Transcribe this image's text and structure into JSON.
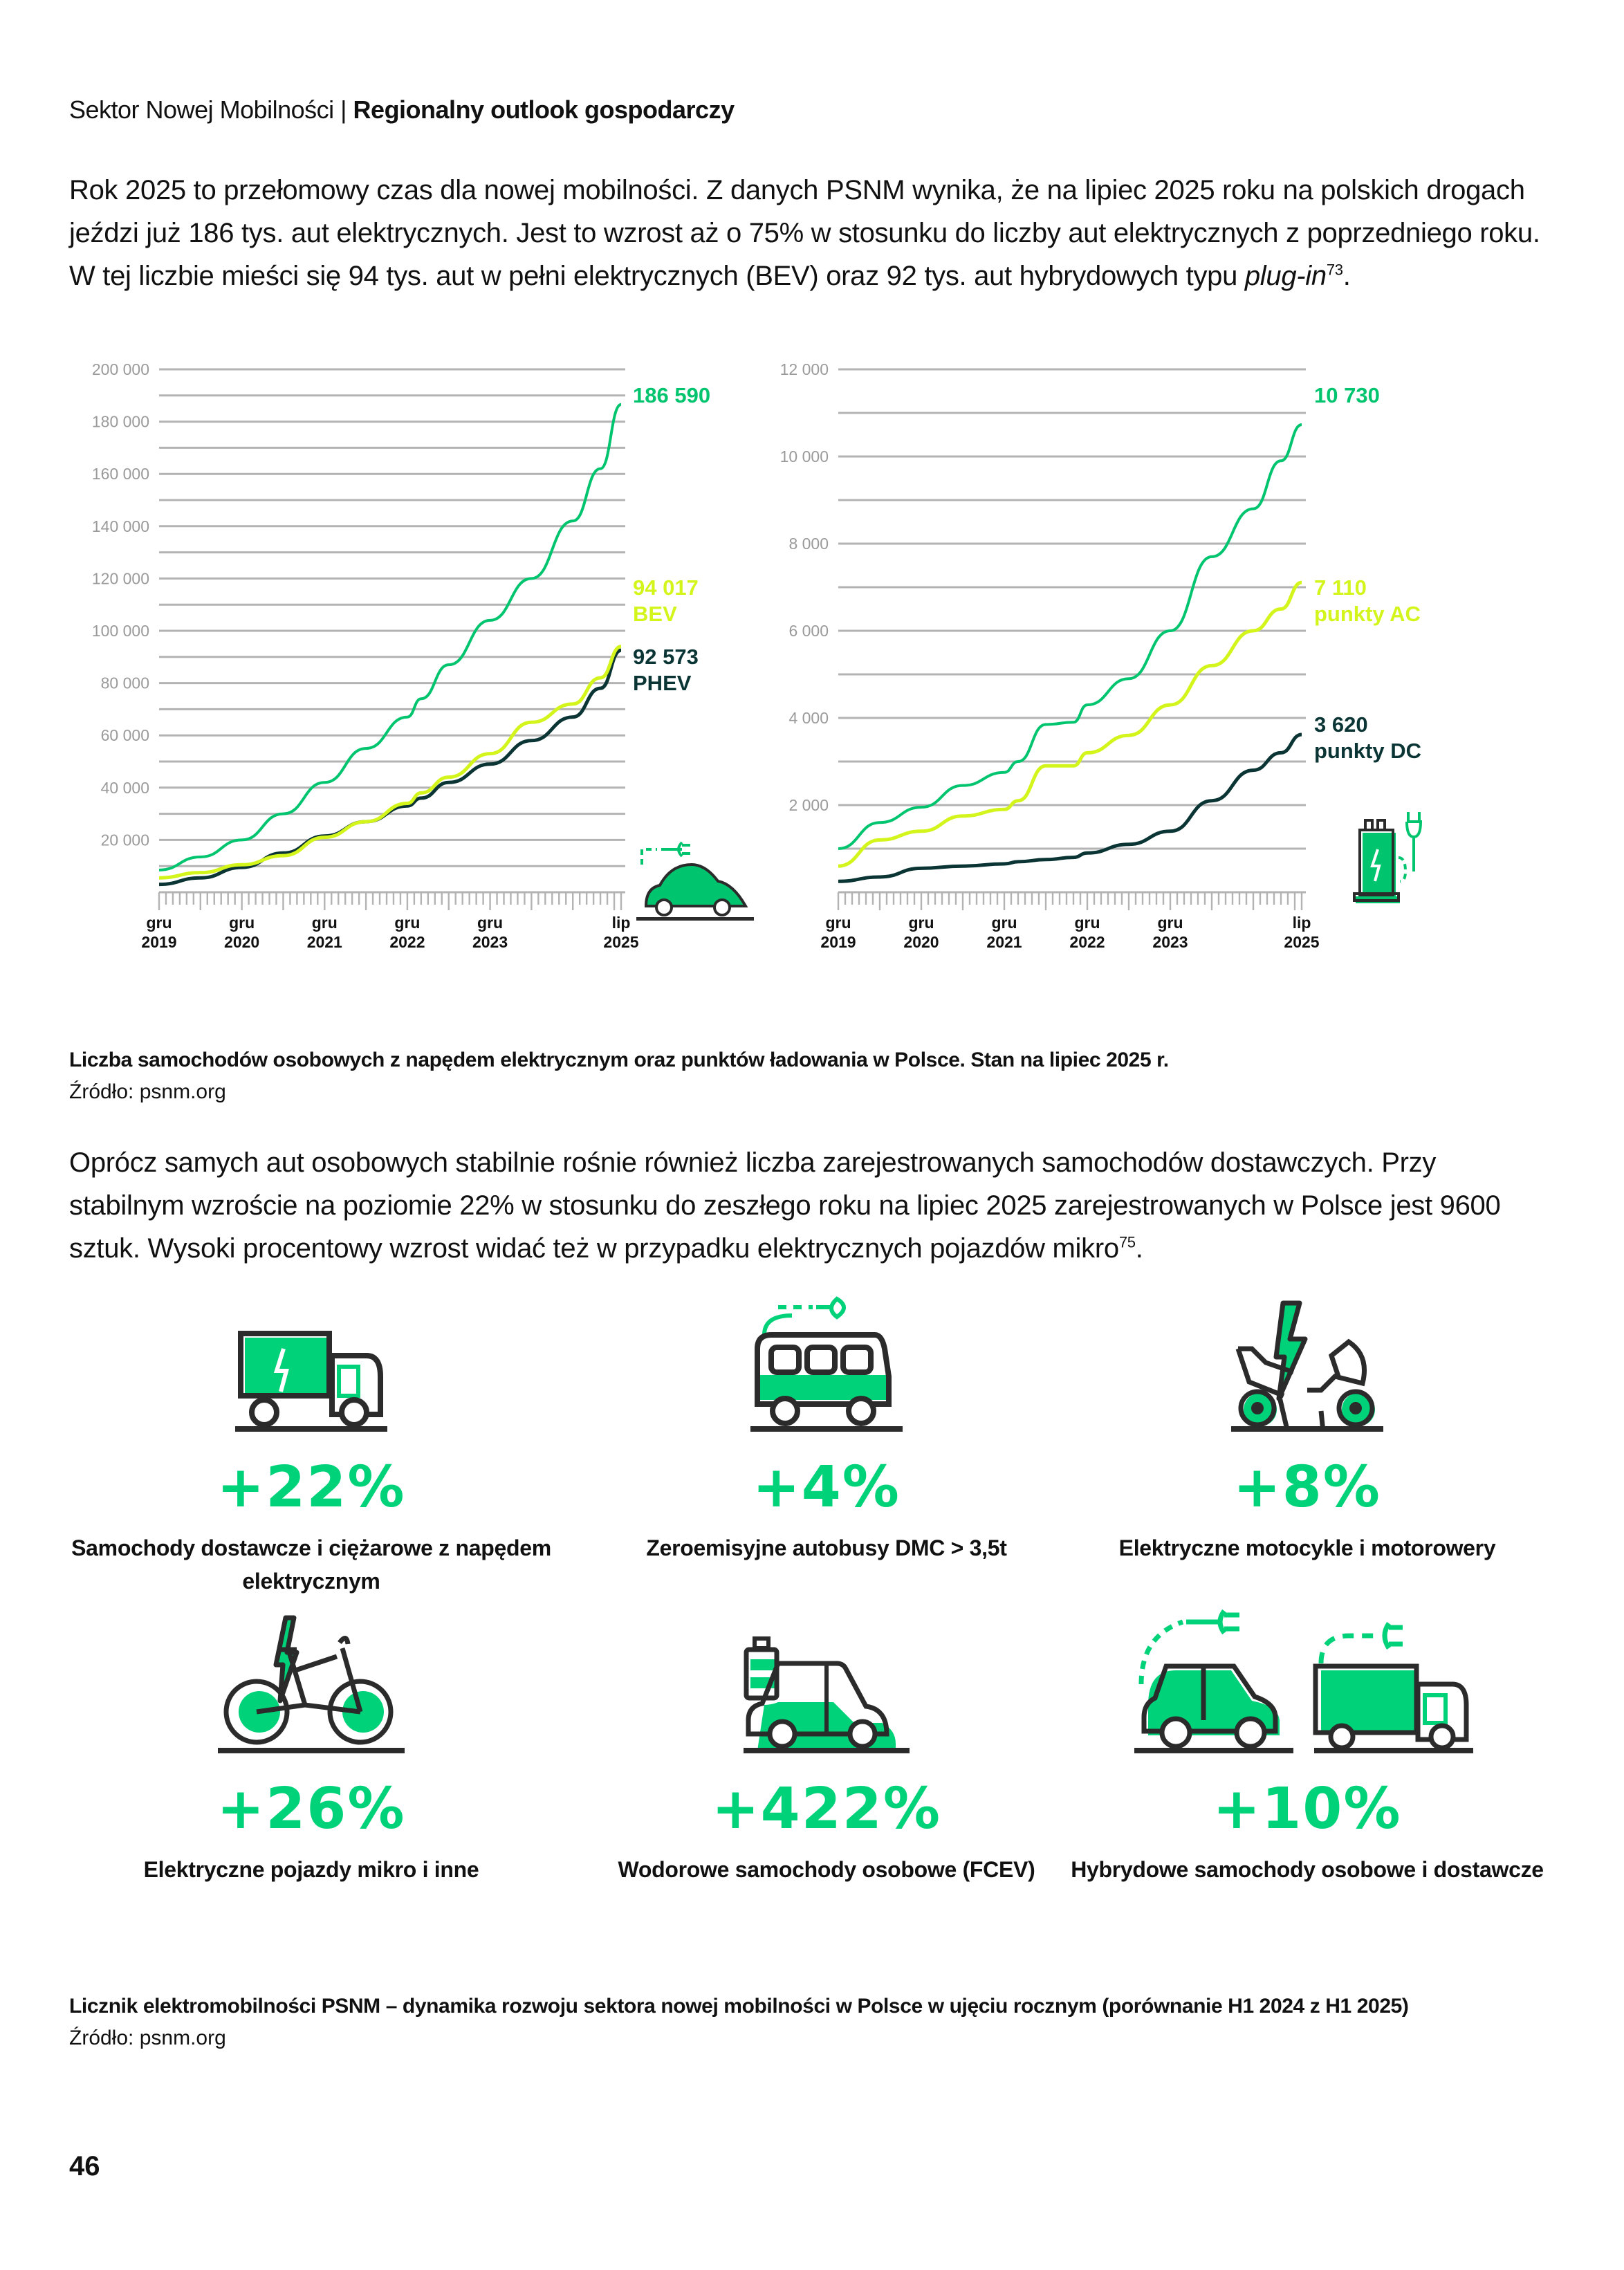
{
  "header": {
    "section": "Sektor Nowej Mobilności",
    "separator": "|",
    "title": "Regionalny outlook gospodarczy"
  },
  "paragraph1": {
    "text": "Rok 2025 to przełomowy czas dla nowej mobilności. Z danych PSNM wynika, że na lipiec 2025 roku na polskich drogach jeździ już 186 tys. aut elektrycznych. Jest to wzrost aż o 75% w stosunku do liczby aut elektrycznych z poprzedniego roku. W tej liczbie mieści się 94 tys. aut w pełni elektrycznych (BEV) oraz 92 tys. aut hybrydowych typu ",
    "italic": "plug-in",
    "footnote": "73",
    "end": "."
  },
  "colors": {
    "total": "#00c46e",
    "bev": "#d4f51c",
    "phev": "#0b3535",
    "grid": "#b3b3b3",
    "tick_label": "#9a9a9a",
    "accent": "#00d27a",
    "icon_stroke": "#2b2b2b"
  },
  "chart_data": [
    {
      "type": "line",
      "title": "",
      "xlabel": "",
      "ylabel": "",
      "x_ticks": [
        {
          "month_index": 0,
          "line1": "gru",
          "line2": "2019"
        },
        {
          "month_index": 12,
          "line1": "gru",
          "line2": "2020"
        },
        {
          "month_index": 24,
          "line1": "gru",
          "line2": "2021"
        },
        {
          "month_index": 36,
          "line1": "gru",
          "line2": "2022"
        },
        {
          "month_index": 48,
          "line1": "gru",
          "line2": "2023"
        },
        {
          "month_index": 67,
          "line1": "lip",
          "line2": "2025"
        }
      ],
      "x_range_months": [
        0,
        67
      ],
      "ylim": [
        0,
        200000
      ],
      "y_grid_step": 10000,
      "y_ticks": [
        {
          "value": 20000,
          "label": "20 000"
        },
        {
          "value": 40000,
          "label": "40 000"
        },
        {
          "value": 60000,
          "label": "60 000"
        },
        {
          "value": 80000,
          "label": "80 000"
        },
        {
          "value": 100000,
          "label": "100 000"
        },
        {
          "value": 120000,
          "label": "120 000"
        },
        {
          "value": 140000,
          "label": "140 000"
        },
        {
          "value": 160000,
          "label": "160 000"
        },
        {
          "value": 180000,
          "label": "180 000"
        },
        {
          "value": 200000,
          "label": "200 000"
        }
      ],
      "grid": true,
      "x": [
        0,
        6,
        12,
        18,
        24,
        30,
        36,
        38,
        42,
        48,
        54,
        60,
        64,
        67
      ],
      "series": [
        {
          "name": "total",
          "label_value": "186 590",
          "label_name": "",
          "color_key": "total",
          "values": [
            8500,
            13500,
            20000,
            30000,
            42000,
            55000,
            67000,
            74000,
            87000,
            104000,
            120000,
            142000,
            162000,
            186590
          ]
        },
        {
          "name": "BEV",
          "label_value": "94 017",
          "label_name": "BEV",
          "color_key": "bev",
          "values": [
            5500,
            7500,
            10500,
            14000,
            21000,
            27000,
            34000,
            38000,
            44000,
            53000,
            65000,
            72000,
            82000,
            94017
          ]
        },
        {
          "name": "PHEV",
          "label_value": "92 573",
          "label_name": "PHEV",
          "color_key": "phev",
          "values": [
            3000,
            5500,
            9500,
            15000,
            21500,
            27000,
            33000,
            36000,
            42000,
            49000,
            58000,
            67000,
            78000,
            92573
          ]
        }
      ]
    },
    {
      "type": "line",
      "title": "",
      "xlabel": "",
      "ylabel": "",
      "x_ticks": [
        {
          "month_index": 0,
          "line1": "gru",
          "line2": "2019"
        },
        {
          "month_index": 12,
          "line1": "gru",
          "line2": "2020"
        },
        {
          "month_index": 24,
          "line1": "gru",
          "line2": "2021"
        },
        {
          "month_index": 36,
          "line1": "gru",
          "line2": "2022"
        },
        {
          "month_index": 48,
          "line1": "gru",
          "line2": "2023"
        },
        {
          "month_index": 67,
          "line1": "lip",
          "line2": "2025"
        }
      ],
      "x_range_months": [
        0,
        67
      ],
      "ylim": [
        0,
        12000
      ],
      "y_grid_step": 1000,
      "y_ticks": [
        {
          "value": 2000,
          "label": "2 000"
        },
        {
          "value": 4000,
          "label": "4 000"
        },
        {
          "value": 6000,
          "label": "6 000"
        },
        {
          "value": 8000,
          "label": "8 000"
        },
        {
          "value": 10000,
          "label": "10 000"
        },
        {
          "value": 12000,
          "label": "12 000"
        }
      ],
      "grid": true,
      "x": [
        0,
        6,
        12,
        18,
        24,
        26,
        30,
        34,
        36,
        42,
        48,
        54,
        60,
        64,
        67
      ],
      "series": [
        {
          "name": "total",
          "label_value": "10 730",
          "label_name": "",
          "color_key": "total",
          "values": [
            1000,
            1600,
            1950,
            2450,
            2750,
            3000,
            3850,
            3900,
            4300,
            4900,
            6000,
            7700,
            8800,
            9900,
            10730
          ]
        },
        {
          "name": "punkty AC",
          "label_value": "7 110",
          "label_name": "punkty AC",
          "color_key": "bev",
          "values": [
            600,
            1200,
            1400,
            1750,
            1900,
            2100,
            2900,
            2900,
            3200,
            3600,
            4300,
            5200,
            6000,
            6500,
            7110
          ]
        },
        {
          "name": "punkty DC",
          "label_value": "3 620",
          "label_name": "punkty DC",
          "color_key": "phev",
          "values": [
            250,
            350,
            550,
            600,
            650,
            700,
            750,
            800,
            900,
            1100,
            1400,
            2100,
            2800,
            3200,
            3620
          ]
        }
      ]
    }
  ],
  "caption1": {
    "title": "Liczba samochodów osobowych z napędem elektrycznym oraz punktów ładowania w Polsce. Stan na lipiec 2025 r.",
    "source": "Źródło: psnm.org"
  },
  "paragraph2": {
    "text": "Oprócz samych aut osobowych stabilnie rośnie również liczba zarejestrowanych samochodów dostawczych. Przy stabilnym wzroście na poziomie 22% w stosunku do zeszłego roku na lipiec 2025 zarejestrowanych w Polsce jest 9600 sztuk. Wysoki procentowy wzrost widać też w przypadku elektrycznych pojazdów mikro",
    "footnote": "75",
    "end": "."
  },
  "stats": [
    {
      "icon": "electric-truck-icon",
      "value": "+22%",
      "label": "Samochody dostawcze i ciężarowe z napędem elektrycznym"
    },
    {
      "icon": "electric-bus-icon",
      "value": "+4%",
      "label": "Zeroemisyjne autobusy DMC > 3,5t"
    },
    {
      "icon": "electric-motorcycle-icon",
      "value": "+8%",
      "label": "Elektryczne motocykle i motorowery"
    },
    {
      "icon": "electric-bike-icon",
      "value": "+26%",
      "label": "Elektryczne pojazdy mikro i inne"
    },
    {
      "icon": "hydrogen-car-icon",
      "value": "+422%",
      "label": "Wodorowe samochody osobowe (FCEV)"
    },
    {
      "icon": "hybrid-car-van-icon",
      "value": "+10%",
      "label": "Hybrydowe samochody osobowe i dostawcze"
    }
  ],
  "caption2": {
    "title": "Licznik elektromobilności PSNM – dynamika rozwoju sektora nowej mobilności w Polsce w ujęciu rocznym (porównanie H1 2024 z H1 2025)",
    "source": "Źródło: psnm.org"
  },
  "page_number": "46"
}
